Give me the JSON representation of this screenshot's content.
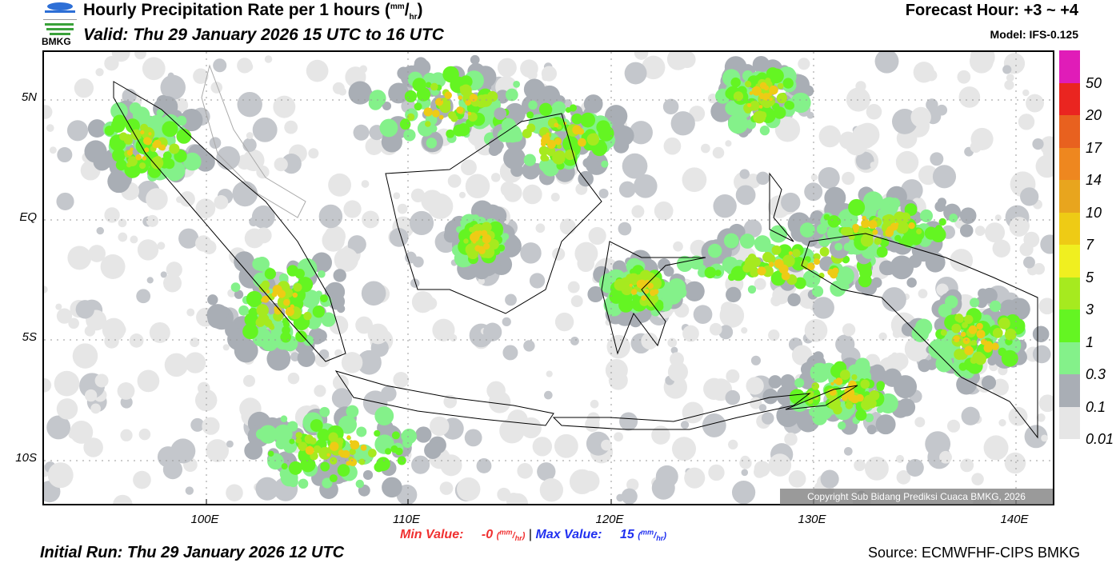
{
  "header": {
    "title": "Hourly Precipitation Rate per 1 hours (",
    "unit_num": "mm",
    "unit_den": "hr",
    "title_close": ")",
    "valid": "Valid: Thu 29 January 2026 15 UTC to 16 UTC",
    "forecast_hour": "Forecast Hour: +3 ~ +4",
    "model": "Model: IFS-0.125",
    "logo_text": "BMKG"
  },
  "axes": {
    "lat_labels": [
      "5N",
      "EQ",
      "5S",
      "10S"
    ],
    "lon_labels": [
      "100E",
      "110E",
      "120E",
      "130E",
      "140E"
    ]
  },
  "legend": {
    "labels": [
      "50",
      "20",
      "17",
      "14",
      "10",
      "7",
      "5",
      "3",
      "1",
      "0.3",
      "0.1",
      "0.01"
    ],
    "colors": [
      "#e01cb8",
      "#ea2520",
      "#e8611f",
      "#ee871f",
      "#e8a51e",
      "#eecb15",
      "#f0ef20",
      "#a6ea1f",
      "#64f522",
      "#84f18a",
      "#a9aeb5",
      "#e6e6e6"
    ]
  },
  "footer": {
    "min_label": "Min Value:",
    "min_value": "-0",
    "max_label": "Max Value:",
    "max_value": "15",
    "sep": "|",
    "unit_num": "mm",
    "unit_den": "hr",
    "initial_run": "Initial Run: Thu 29 January 2026 12 UTC",
    "source": "Source: ECMWFHF-CIPS BMKG",
    "copyright": "Copyright Sub Bidang Prediksi Cuaca BMKG, 2026"
  }
}
